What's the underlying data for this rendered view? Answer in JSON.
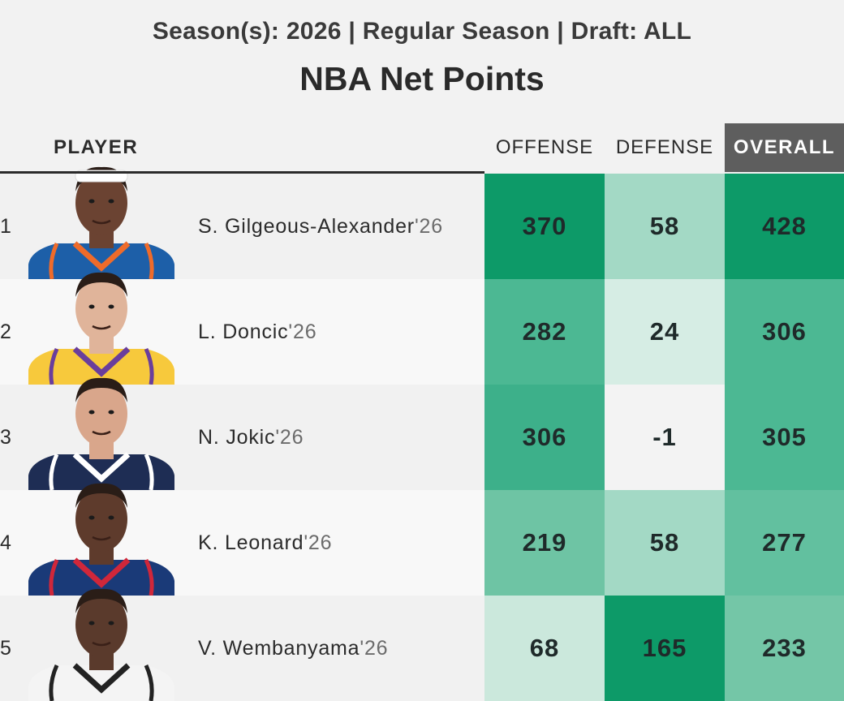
{
  "header": {
    "subtitle": "Season(s): 2026 | Regular Season | Draft: ALL",
    "title": "NBA Net Points"
  },
  "columns": {
    "player": "PLAYER",
    "offense": "OFFENSE",
    "defense": "DEFENSE",
    "overall": "OVERALL"
  },
  "rows": [
    {
      "rank": "1",
      "name": "S. Gilgeous-Alexander",
      "year": "'26",
      "offense": "370",
      "defense": "58",
      "overall": "428",
      "jersey_color": "#1d5fa8",
      "jersey_trim": "#ef6b2a",
      "skin": "#6b4332",
      "headband": true,
      "offense_color": "#0d9a68",
      "defense_color": "#a3d9c5",
      "overall_color": "#0d9a68"
    },
    {
      "rank": "2",
      "name": "L. Doncic",
      "year": "'26",
      "offense": "282",
      "defense": "24",
      "overall": "306",
      "jersey_color": "#f7c93c",
      "jersey_trim": "#6a3e9c",
      "skin": "#e0b49a",
      "headband": false,
      "offense_color": "#4cb893",
      "defense_color": "#d6ede4",
      "overall_color": "#4cb893"
    },
    {
      "rank": "3",
      "name": "N. Jokic",
      "year": "'26",
      "offense": "306",
      "defense": "-1",
      "overall": "305",
      "jersey_color": "#1e2d54",
      "jersey_trim": "#ffffff",
      "skin": "#d9a68b",
      "headband": false,
      "offense_color": "#3db08a",
      "defense_color": "#f3f3f3",
      "overall_color": "#4cb893"
    },
    {
      "rank": "4",
      "name": "K. Leonard",
      "year": "'26",
      "offense": "219",
      "defense": "58",
      "overall": "277",
      "jersey_color": "#1a3a78",
      "jersey_trim": "#d0273a",
      "skin": "#5e3b2c",
      "headband": false,
      "offense_color": "#6ec4a4",
      "defense_color": "#a3d9c5",
      "overall_color": "#62c09f"
    },
    {
      "rank": "5",
      "name": "V. Wembanyama",
      "year": "'26",
      "offense": "68",
      "defense": "165",
      "overall": "233",
      "jersey_color": "#f4f4f4",
      "jersey_trim": "#222222",
      "skin": "#5a3a2c",
      "headband": false,
      "offense_color": "#cbe8dc",
      "defense_color": "#0d9a68",
      "overall_color": "#74c6a7"
    }
  ]
}
